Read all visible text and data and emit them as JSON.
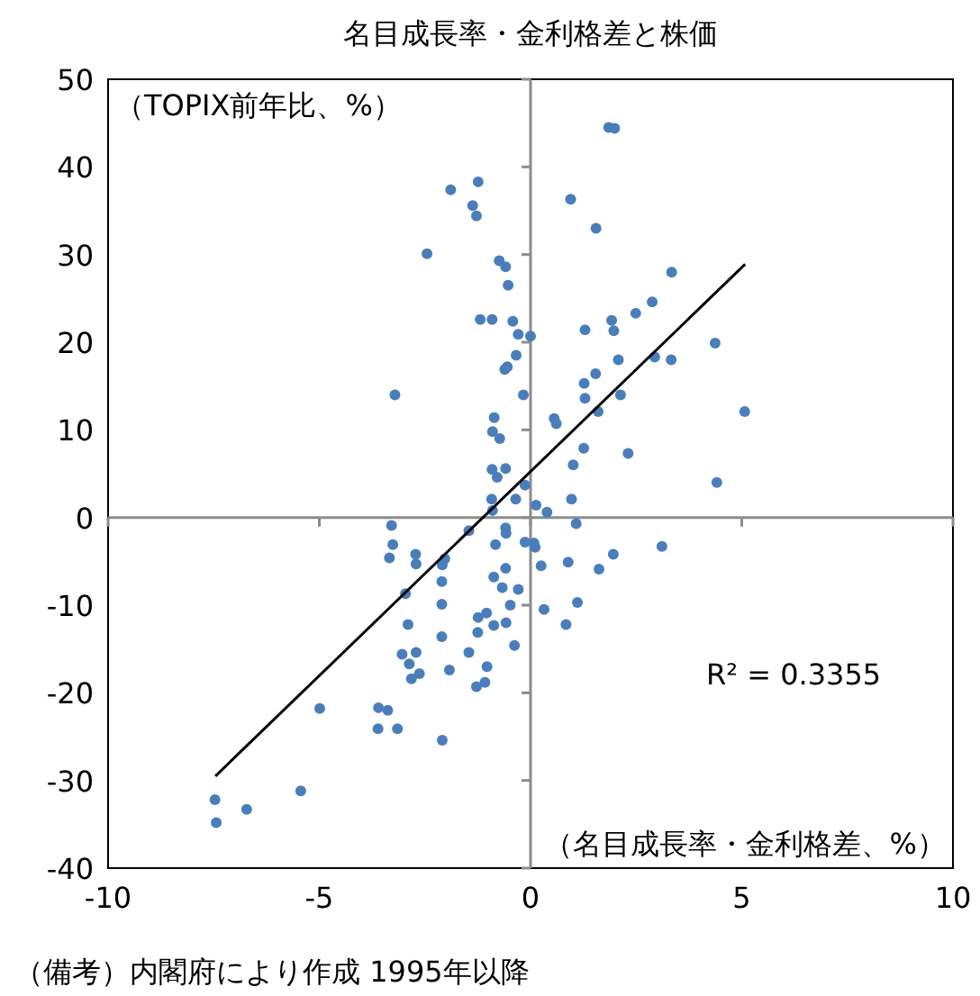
{
  "chart_data": {
    "type": "scatter",
    "title": "名目成長率・金利格差と株価",
    "annotations": [
      "（TOPIX前年比、%）",
      "（名目成長率・金利格差、%）",
      "R² = 0.3355",
      "（備考）内閣府により作成 1995年以降"
    ],
    "xlim": [
      -10,
      10
    ],
    "xticks": [
      -10,
      -5,
      0,
      5,
      10
    ],
    "ylim": [
      -40,
      50
    ],
    "yticks": [
      -40,
      -30,
      -20,
      -10,
      0,
      10,
      20,
      30,
      40,
      50
    ],
    "marker": "circle",
    "series": [
      {
        "color": "#4a7ebb",
        "x": [
          -1.89,
          -1.24,
          -1.37,
          -1.28,
          0.95,
          -2.45,
          -0.74,
          -0.59,
          -0.53,
          -1.19,
          -0.91,
          -0.42,
          -0.29,
          0.0,
          -0.34,
          -0.61,
          -0.55,
          -3.21,
          -0.17,
          -0.86,
          -0.9,
          -0.73,
          0.56,
          0.61,
          -0.91,
          -0.59,
          -0.79,
          1.01,
          -0.13,
          -0.92,
          -0.35,
          0.13,
          0.39,
          0.97,
          -0.9,
          -3.29,
          -1.46,
          -0.59,
          -0.58,
          1.08,
          -3.26,
          -3.34,
          -2.72,
          -2.71,
          -0.83,
          -0.13,
          0.08,
          0.11,
          -2.03,
          -2.09,
          -2.1,
          0.25,
          0.89,
          -0.59,
          -0.87,
          -0.67,
          -0.29,
          -2.96,
          -2.1,
          -0.48,
          1.11,
          0.32,
          -1.04,
          -1.24,
          -0.58,
          -0.87,
          0.84,
          -2.9,
          -1.25,
          -2.1,
          -0.38,
          -1.46,
          -3.04,
          -2.71,
          -2.87,
          -1.03,
          -1.92,
          -2.63,
          -2.82,
          -1.08,
          -1.28,
          -4.99,
          -3.6,
          -3.38,
          -3.61,
          -3.15,
          -2.09,
          -5.44,
          -7.47,
          -6.72,
          -7.44,
          1.85,
          1.99,
          1.55,
          3.34,
          2.88,
          2.49,
          1.92,
          1.97,
          1.29,
          4.37,
          2.08,
          2.94,
          3.33,
          1.54,
          1.27,
          1.29,
          2.13,
          1.6,
          5.07,
          1.26,
          2.31,
          4.41,
          1.96,
          3.11,
          1.62
        ],
        "values": [
          37.4,
          38.3,
          35.6,
          34.4,
          36.3,
          30.1,
          29.3,
          28.6,
          26.5,
          22.6,
          22.6,
          22.4,
          20.9,
          20.7,
          18.5,
          16.9,
          17.2,
          14.0,
          14.0,
          11.4,
          9.8,
          9.0,
          11.3,
          10.7,
          5.5,
          5.6,
          4.6,
          6.0,
          3.7,
          2.1,
          2.1,
          1.4,
          0.6,
          2.1,
          0.8,
          -0.9,
          -1.5,
          -1.2,
          -1.8,
          -0.7,
          -3.1,
          -4.6,
          -4.2,
          -5.3,
          -3.1,
          -2.8,
          -2.9,
          -3.4,
          -4.7,
          -5.4,
          -7.3,
          -5.5,
          -5.1,
          -5.8,
          -6.8,
          -8.0,
          -8.2,
          -8.7,
          -9.9,
          -10.0,
          -9.7,
          -10.5,
          -10.9,
          -11.4,
          -12.0,
          -12.3,
          -12.2,
          -12.2,
          -13.1,
          -13.6,
          -14.6,
          -15.4,
          -15.6,
          -15.4,
          -16.7,
          -17.0,
          -17.4,
          -17.8,
          -18.4,
          -18.8,
          -19.3,
          -21.8,
          -21.7,
          -22.0,
          -24.1,
          -24.1,
          -25.4,
          -31.2,
          -32.2,
          -33.3,
          -34.8,
          44.5,
          44.4,
          33.0,
          28.0,
          24.6,
          23.3,
          22.5,
          21.3,
          21.4,
          19.9,
          18.0,
          18.3,
          18.0,
          16.4,
          15.3,
          13.6,
          14.0,
          12.1,
          12.1,
          7.9,
          7.3,
          4.0,
          -4.2,
          -3.3,
          -5.9
        ]
      },
      {
        "type": "line",
        "marker": "none",
        "color": "#000000",
        "x": [
          -7.46,
          5.08
        ],
        "values": [
          -29.5,
          28.9
        ]
      }
    ]
  }
}
